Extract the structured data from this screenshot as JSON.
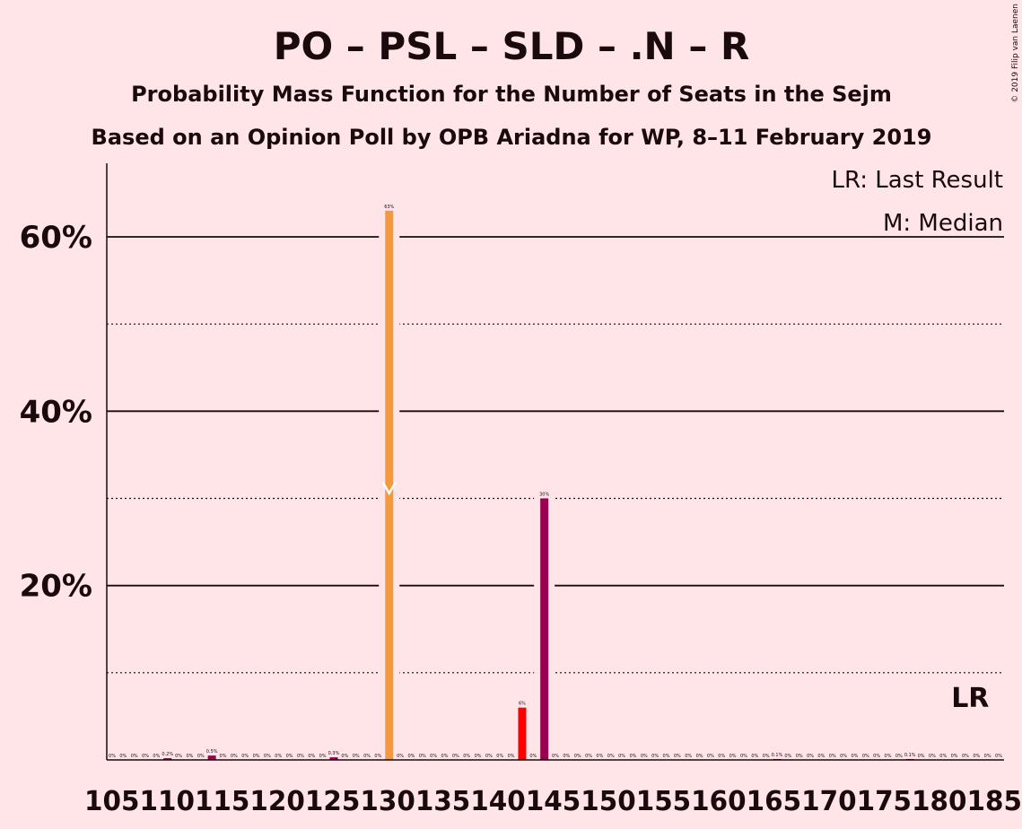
{
  "title": "PO – PSL – SLD – .N – R",
  "subtitle1": "Probability Mass Function for the Number of Seats in the Sejm",
  "subtitle2": "Based on an Opinion Poll by OPB Ariadna for WP, 8–11 February 2019",
  "copyright": "© 2019 Filip van Laenen",
  "legend": {
    "last_result": "LR: Last Result",
    "median": "M: Median",
    "lr_marker": "LR"
  },
  "colors": {
    "background": "#FFE4E8",
    "text": "#1a0a0d",
    "default_bar": "#99004D",
    "median_bar": "#F59A3C",
    "red_bar": "#FF0000",
    "median_marker": "#FFFFFF"
  },
  "chart_data": {
    "type": "bar",
    "xlabel": "",
    "ylabel": "",
    "ylim": [
      0,
      68
    ],
    "y_ticks": [
      20,
      40,
      60
    ],
    "y_tick_labels": [
      "20%",
      "40%",
      "60%"
    ],
    "x_tick_labels": [
      "105",
      "110",
      "115",
      "120",
      "125",
      "130",
      "135",
      "140",
      "145",
      "150",
      "155",
      "160",
      "165",
      "170",
      "175",
      "180",
      "185"
    ],
    "gridlines": {
      "solid": [
        20,
        40,
        60
      ],
      "dotted": [
        10,
        30,
        50
      ]
    },
    "median_seat": 130,
    "last_result_seat": 183,
    "bars": [
      {
        "seat": 105,
        "value": 0,
        "label": "0%"
      },
      {
        "seat": 106,
        "value": 0,
        "label": "0%"
      },
      {
        "seat": 107,
        "value": 0,
        "label": "0%"
      },
      {
        "seat": 108,
        "value": 0,
        "label": "0%"
      },
      {
        "seat": 109,
        "value": 0,
        "label": "0%"
      },
      {
        "seat": 110,
        "value": 0.2,
        "label": "0.2%"
      },
      {
        "seat": 111,
        "value": 0,
        "label": "0%"
      },
      {
        "seat": 112,
        "value": 0,
        "label": "0%"
      },
      {
        "seat": 113,
        "value": 0,
        "label": "0%"
      },
      {
        "seat": 114,
        "value": 0.5,
        "label": "0.5%"
      },
      {
        "seat": 115,
        "value": 0,
        "label": "0%"
      },
      {
        "seat": 116,
        "value": 0,
        "label": "0%"
      },
      {
        "seat": 117,
        "value": 0,
        "label": "0%"
      },
      {
        "seat": 118,
        "value": 0,
        "label": "0%"
      },
      {
        "seat": 119,
        "value": 0,
        "label": "0%"
      },
      {
        "seat": 120,
        "value": 0,
        "label": "0%"
      },
      {
        "seat": 121,
        "value": 0,
        "label": "0%"
      },
      {
        "seat": 122,
        "value": 0,
        "label": "0%"
      },
      {
        "seat": 123,
        "value": 0,
        "label": "0%"
      },
      {
        "seat": 124,
        "value": 0,
        "label": "0%"
      },
      {
        "seat": 125,
        "value": 0.3,
        "label": "0.3%"
      },
      {
        "seat": 126,
        "value": 0,
        "label": "0%"
      },
      {
        "seat": 127,
        "value": 0,
        "label": "0%"
      },
      {
        "seat": 128,
        "value": 0,
        "label": "0%"
      },
      {
        "seat": 129,
        "value": 0,
        "label": "0%"
      },
      {
        "seat": 130,
        "value": 63,
        "label": "63%"
      },
      {
        "seat": 131,
        "value": 0,
        "label": "0%"
      },
      {
        "seat": 132,
        "value": 0,
        "label": "0%"
      },
      {
        "seat": 133,
        "value": 0,
        "label": "0%"
      },
      {
        "seat": 134,
        "value": 0,
        "label": "0%"
      },
      {
        "seat": 135,
        "value": 0,
        "label": "0%"
      },
      {
        "seat": 136,
        "value": 0,
        "label": "0%"
      },
      {
        "seat": 137,
        "value": 0,
        "label": "0%"
      },
      {
        "seat": 138,
        "value": 0,
        "label": "0%"
      },
      {
        "seat": 139,
        "value": 0,
        "label": "0%"
      },
      {
        "seat": 140,
        "value": 0,
        "label": "0%"
      },
      {
        "seat": 141,
        "value": 0,
        "label": "0%"
      },
      {
        "seat": 142,
        "value": 6,
        "label": "6%",
        "color": "#FF0000"
      },
      {
        "seat": 143,
        "value": 0,
        "label": "0%"
      },
      {
        "seat": 144,
        "value": 30,
        "label": "30%"
      },
      {
        "seat": 145,
        "value": 0,
        "label": "0%"
      },
      {
        "seat": 146,
        "value": 0,
        "label": "0%"
      },
      {
        "seat": 147,
        "value": 0,
        "label": "0%"
      },
      {
        "seat": 148,
        "value": 0,
        "label": "0%"
      },
      {
        "seat": 149,
        "value": 0,
        "label": "0%"
      },
      {
        "seat": 150,
        "value": 0,
        "label": "0%"
      },
      {
        "seat": 151,
        "value": 0,
        "label": "0%"
      },
      {
        "seat": 152,
        "value": 0,
        "label": "0%"
      },
      {
        "seat": 153,
        "value": 0,
        "label": "0%"
      },
      {
        "seat": 154,
        "value": 0,
        "label": "0%"
      },
      {
        "seat": 155,
        "value": 0,
        "label": "0%"
      },
      {
        "seat": 156,
        "value": 0,
        "label": "0%"
      },
      {
        "seat": 157,
        "value": 0,
        "label": "0%"
      },
      {
        "seat": 158,
        "value": 0,
        "label": "0%"
      },
      {
        "seat": 159,
        "value": 0,
        "label": "0%"
      },
      {
        "seat": 160,
        "value": 0,
        "label": "0%"
      },
      {
        "seat": 161,
        "value": 0,
        "label": "0%"
      },
      {
        "seat": 162,
        "value": 0,
        "label": "0%"
      },
      {
        "seat": 163,
        "value": 0,
        "label": "0%"
      },
      {
        "seat": 164,
        "value": 0,
        "label": "0%"
      },
      {
        "seat": 165,
        "value": 0.1,
        "label": "0.1%"
      },
      {
        "seat": 166,
        "value": 0,
        "label": "0%"
      },
      {
        "seat": 167,
        "value": 0,
        "label": "0%"
      },
      {
        "seat": 168,
        "value": 0,
        "label": "0%"
      },
      {
        "seat": 169,
        "value": 0,
        "label": "0%"
      },
      {
        "seat": 170,
        "value": 0,
        "label": "0%"
      },
      {
        "seat": 171,
        "value": 0,
        "label": "0%"
      },
      {
        "seat": 172,
        "value": 0,
        "label": "0%"
      },
      {
        "seat": 173,
        "value": 0,
        "label": "0%"
      },
      {
        "seat": 174,
        "value": 0,
        "label": "0%"
      },
      {
        "seat": 175,
        "value": 0,
        "label": "0%"
      },
      {
        "seat": 176,
        "value": 0,
        "label": "0%"
      },
      {
        "seat": 177,
        "value": 0.1,
        "label": "0.1%"
      },
      {
        "seat": 178,
        "value": 0,
        "label": "0%"
      },
      {
        "seat": 179,
        "value": 0,
        "label": "0%"
      },
      {
        "seat": 180,
        "value": 0,
        "label": "0%"
      },
      {
        "seat": 181,
        "value": 0,
        "label": "0%"
      },
      {
        "seat": 182,
        "value": 0,
        "label": "0%"
      },
      {
        "seat": 183,
        "value": 0,
        "label": "0%"
      },
      {
        "seat": 184,
        "value": 0,
        "label": "0%"
      },
      {
        "seat": 185,
        "value": 0,
        "label": "0%"
      }
    ]
  }
}
